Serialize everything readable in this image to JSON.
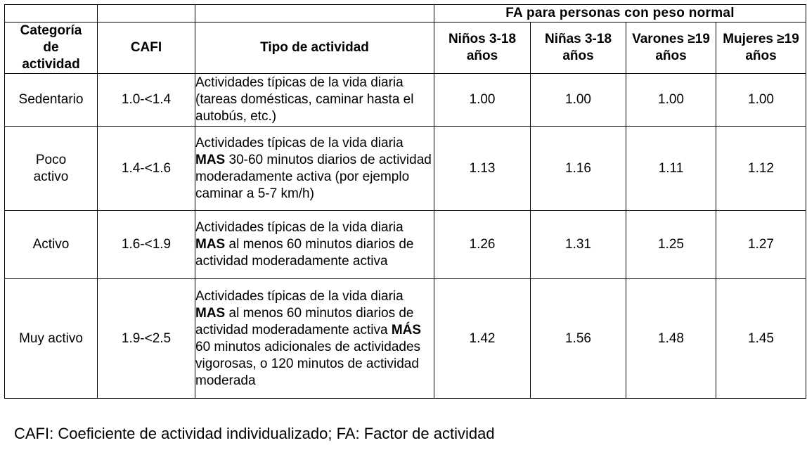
{
  "table": {
    "group_header": "FA para personas con peso normal",
    "headers": {
      "category": "Categoría de actividad",
      "cafi": "CAFI",
      "tipo": "Tipo de actividad",
      "ninos": "Niños 3-18 años",
      "ninas": "Niñas 3-18 años",
      "varones": "Varones ≥19 años",
      "mujeres": "Mujeres ≥19 años"
    },
    "rows": [
      {
        "category": "Sedentario",
        "cafi": "1.0-<1.4",
        "tipo_1": "Actividades típicas de la vida diaria (tareas domésticas, caminar hasta el autobús, etc.)",
        "ninos": "1.00",
        "ninas": "1.00",
        "varones": "1.00",
        "mujeres": "1.00"
      },
      {
        "category": "Poco activo",
        "cafi": "1.4-<1.6",
        "tipo_1": "Actividades típicas de la vida diaria ",
        "tipo_b1": "MAS",
        "tipo_2": " 30-60 minutos diarios de actividad moderadamente activa (por ejemplo caminar a 5-7 km/h)",
        "ninos": "1.13",
        "ninas": "1.16",
        "varones": "1.11",
        "mujeres": "1.12"
      },
      {
        "category": "Activo",
        "cafi": "1.6-<1.9",
        "tipo_1": "Actividades típicas de la vida diaria ",
        "tipo_b1": "MAS",
        "tipo_2": " al menos 60 minutos diarios de actividad moderadamente activa",
        "ninos": "1.26",
        "ninas": "1.31",
        "varones": "1.25",
        "mujeres": "1.27"
      },
      {
        "category": "Muy activo",
        "cafi": "1.9-<2.5",
        "tipo_1": "Actividades típicas de la vida diaria ",
        "tipo_b1": "MAS",
        "tipo_2": " al menos 60 minutos diarios de actividad moderadamente activa ",
        "tipo_b2": "MÁS",
        "tipo_3": " 60 minutos adicionales de actividades vigorosas, o 120 minutos de actividad moderada",
        "ninos": "1.42",
        "ninas": "1.56",
        "varones": "1.48",
        "mujeres": "1.45"
      }
    ]
  },
  "footnote": "CAFI: Coeficiente de actividad individualizado; FA: Factor de actividad"
}
